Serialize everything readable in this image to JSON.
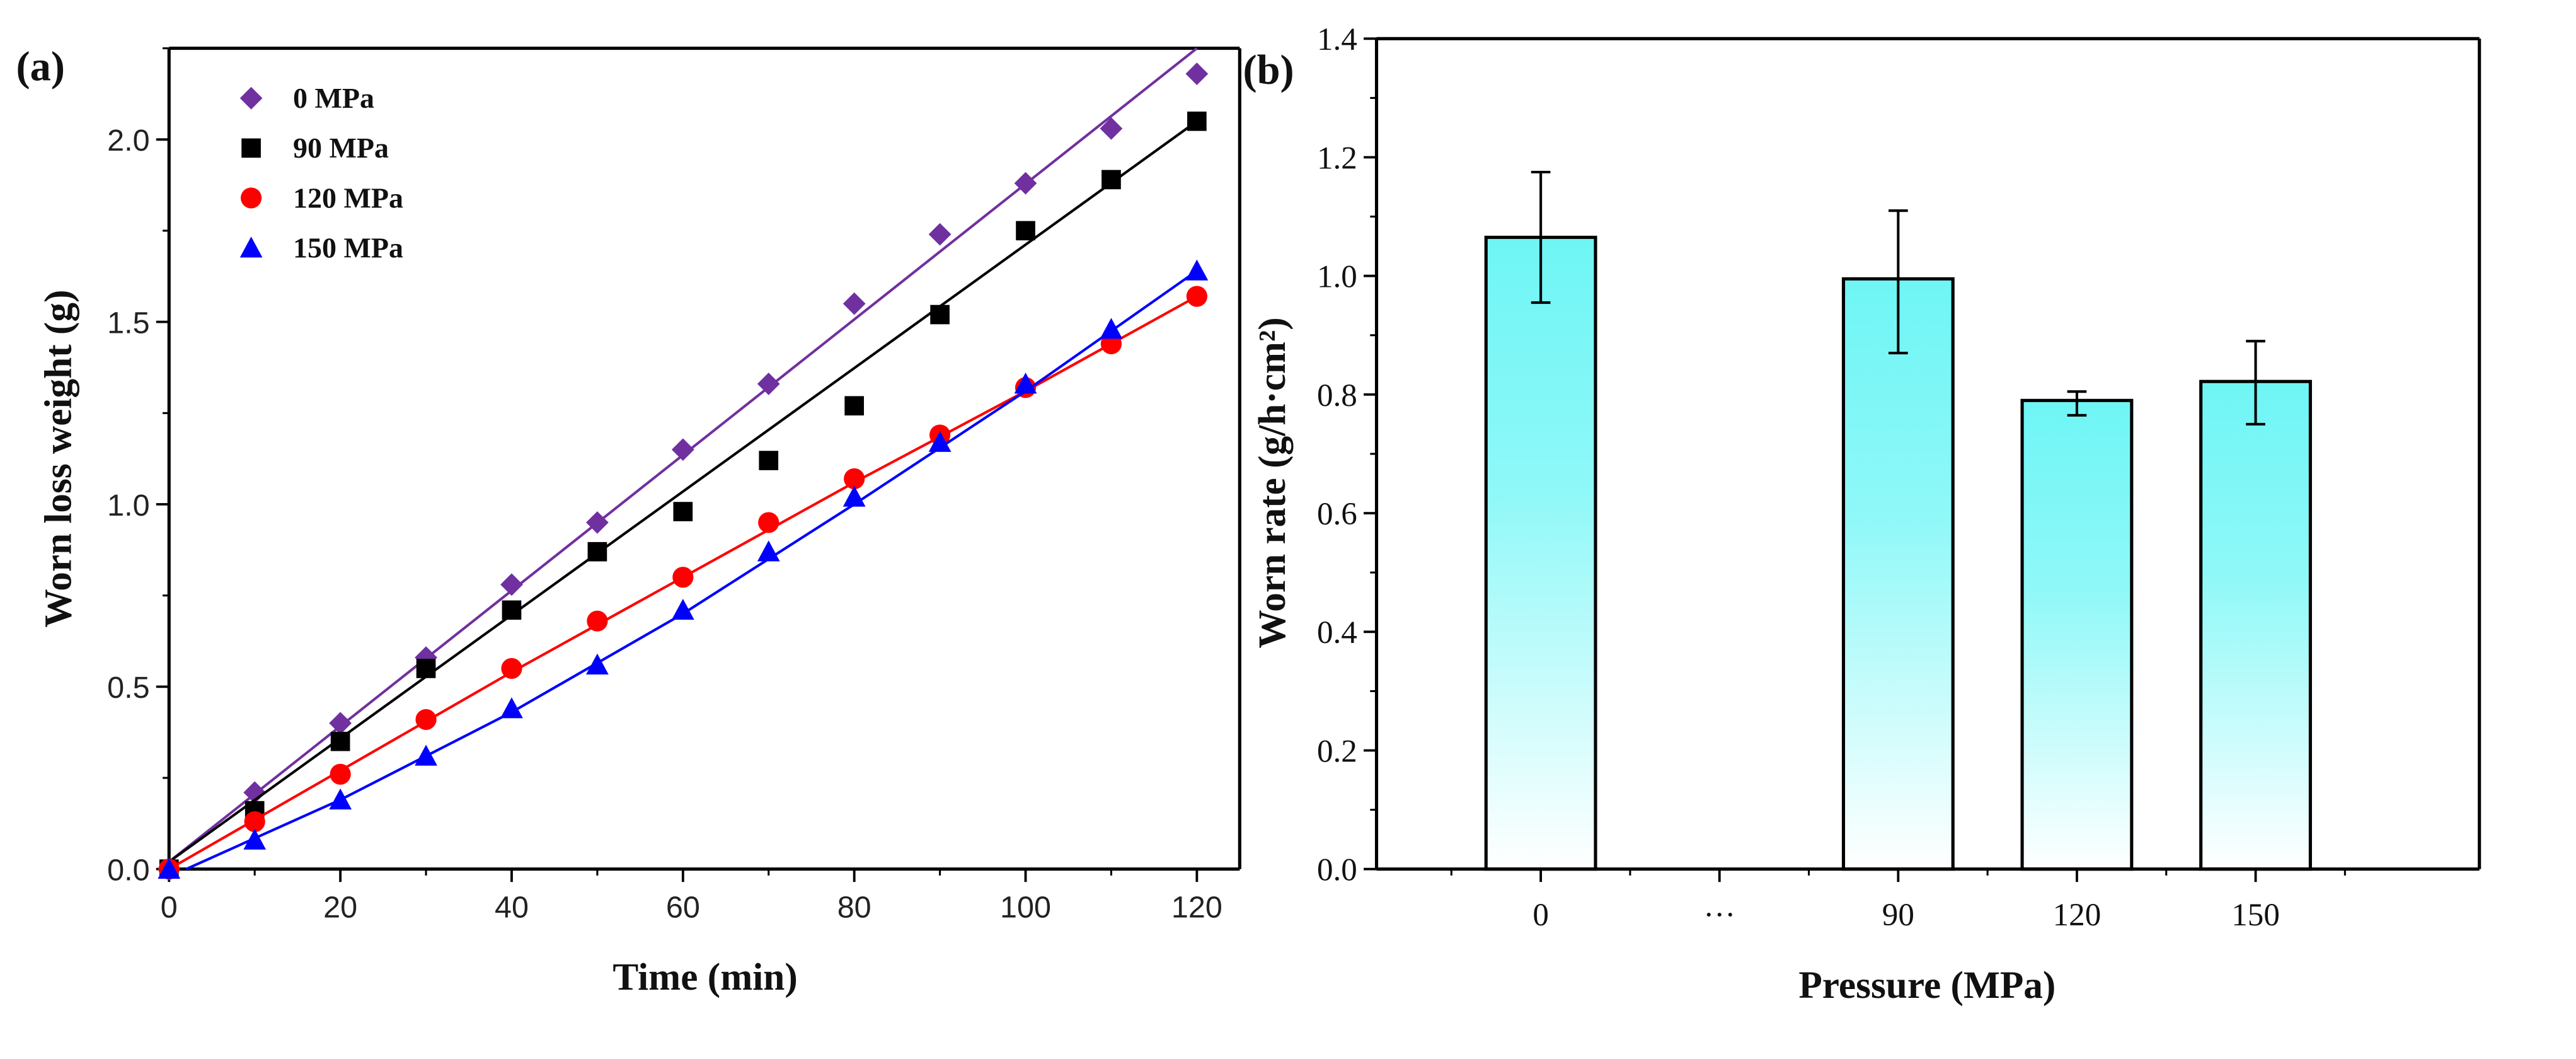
{
  "chart_data": [
    {
      "type": "scatter",
      "panel_label": "(a)",
      "xlabel": "Time (min)",
      "ylabel": "Worn loss weight (g)",
      "xlim": [
        0,
        125
      ],
      "ylim": [
        0,
        2.25
      ],
      "xticks": [
        0,
        20,
        40,
        60,
        80,
        100,
        120
      ],
      "xtick_labels": [
        "0",
        "20",
        "40",
        "60",
        "80",
        "100",
        "120"
      ],
      "yticks": [
        0,
        0.5,
        1.0,
        1.5,
        2.0
      ],
      "ytick_labels": [
        "0.0",
        "0.5",
        "1.0",
        "1.5",
        "2.0"
      ],
      "legend_position": "top-left",
      "x": [
        0,
        10,
        20,
        30,
        40,
        50,
        60,
        70,
        80,
        90,
        100,
        110,
        120
      ],
      "series": [
        {
          "name": "0 MPa",
          "marker": "diamond",
          "color": "#7030a0",
          "values": [
            0,
            0.21,
            0.4,
            0.58,
            0.78,
            0.95,
            1.15,
            1.33,
            1.55,
            1.74,
            1.88,
            2.03,
            2.18
          ],
          "fit": [
            [
              0,
              0.02
            ],
            [
              120,
              2.25
            ]
          ]
        },
        {
          "name": "90 MPa",
          "marker": "square",
          "color": "#000000",
          "values": [
            0,
            0.16,
            0.35,
            0.55,
            0.71,
            0.87,
            0.98,
            1.12,
            1.27,
            1.52,
            1.75,
            1.89,
            2.05
          ],
          "fit": [
            [
              0,
              0.02
            ],
            [
              120,
              2.05
            ]
          ]
        },
        {
          "name": "120 MPa",
          "marker": "circle",
          "color": "#ff0000",
          "values": [
            0,
            0.13,
            0.26,
            0.41,
            0.55,
            0.68,
            0.8,
            0.95,
            1.07,
            1.19,
            1.32,
            1.44,
            1.57
          ],
          "fit": [
            [
              0,
              0
            ],
            [
              20,
              0.27
            ],
            [
              40,
              0.54
            ],
            [
              60,
              0.8
            ],
            [
              80,
              1.06
            ],
            [
              100,
              1.31
            ],
            [
              120,
              1.57
            ]
          ]
        },
        {
          "name": "150 MPa",
          "marker": "triangle",
          "color": "#0000ff",
          "values": [
            0,
            0.08,
            0.19,
            0.31,
            0.44,
            0.56,
            0.71,
            0.87,
            1.02,
            1.17,
            1.33,
            1.48,
            1.64
          ],
          "fit": [
            [
              2,
              0
            ],
            [
              20,
              0.19
            ],
            [
              40,
              0.43
            ],
            [
              60,
              0.7
            ],
            [
              80,
              1.0
            ],
            [
              100,
              1.31
            ],
            [
              120,
              1.64
            ]
          ]
        }
      ]
    },
    {
      "type": "bar",
      "panel_label": "(b)",
      "xlabel": "Pressure (MPa)",
      "ylabel": "Worn rate (g/h·cm²)",
      "ylim": [
        0,
        1.4
      ],
      "yticks": [
        0,
        0.2,
        0.4,
        0.6,
        0.8,
        1.0,
        1.2,
        1.4
      ],
      "ytick_labels": [
        "0.0",
        "0.2",
        "0.4",
        "0.6",
        "0.8",
        "1.0",
        "1.2",
        "1.4"
      ],
      "categories": [
        "0",
        "···",
        "90",
        "120",
        "150"
      ],
      "values": [
        1.065,
        null,
        0.995,
        0.79,
        0.822
      ],
      "errors_low": [
        0.955,
        null,
        0.87,
        0.765,
        0.75
      ],
      "errors_high": [
        1.175,
        null,
        1.11,
        0.805,
        0.89
      ],
      "bar_color_top": "#6ff5f5",
      "bar_color_bottom": "#ffffff"
    }
  ]
}
